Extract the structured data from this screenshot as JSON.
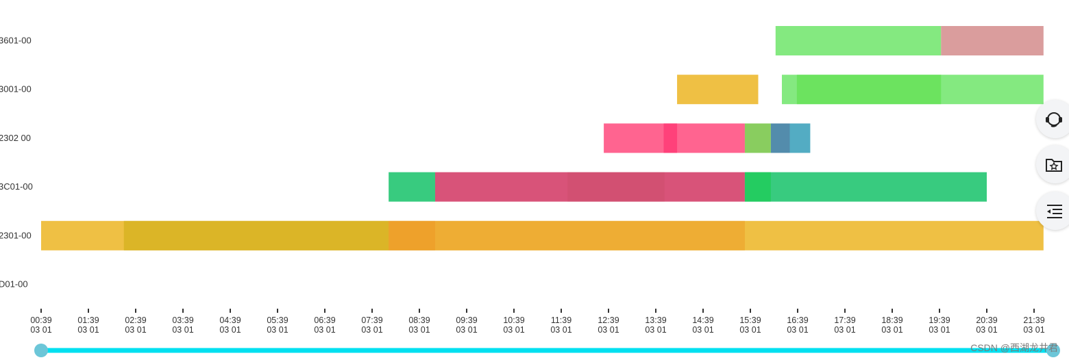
{
  "chart_data": {
    "type": "gantt",
    "title": "",
    "xlabel": "",
    "ylabel": "",
    "categories": [
      "3601-00",
      "3001-00",
      "2302 00",
      "3C01-00",
      "2301-00",
      "D01-00"
    ],
    "x_ticks": [
      {
        "time": "00:39",
        "date": "03 01"
      },
      {
        "time": "01:39",
        "date": "03 01"
      },
      {
        "time": "02:39",
        "date": "03 01"
      },
      {
        "time": "03:39",
        "date": "03 01"
      },
      {
        "time": "04:39",
        "date": "03 01"
      },
      {
        "time": "05:39",
        "date": "03 01"
      },
      {
        "time": "06:39",
        "date": "03 01"
      },
      {
        "time": "07:39",
        "date": "03 01"
      },
      {
        "time": "08:39",
        "date": "03 01"
      },
      {
        "time": "09:39",
        "date": "03 01"
      },
      {
        "time": "10:39",
        "date": "03 01"
      },
      {
        "time": "11:39",
        "date": "03 01"
      },
      {
        "time": "12:39",
        "date": "03 01"
      },
      {
        "time": "13:39",
        "date": "03 01"
      },
      {
        "time": "14:39",
        "date": "03 01"
      },
      {
        "time": "15:39",
        "date": "03 01"
      },
      {
        "time": "16:39",
        "date": "03 01"
      },
      {
        "time": "17:39",
        "date": "03 01"
      },
      {
        "time": "18:39",
        "date": "03 01"
      },
      {
        "time": "19:39",
        "date": "03 01"
      },
      {
        "time": "20:39",
        "date": "03 01"
      },
      {
        "time": "21:39",
        "date": "03 01"
      }
    ],
    "xlim": [
      "00:39",
      "21:51"
    ],
    "bars": [
      {
        "row": "3601-00",
        "start": "16:11",
        "end": "19:41",
        "color": "#6ee56a",
        "opacity": 0.85
      },
      {
        "row": "3601-00",
        "start": "19:41",
        "end": "21:51",
        "color": "#d48c8c",
        "opacity": 0.85
      },
      {
        "row": "3001-00",
        "start": "14:06",
        "end": "15:49",
        "color": "#eebd3a",
        "opacity": 0.95
      },
      {
        "row": "3001-00",
        "start": "16:19",
        "end": "21:51",
        "color": "#6ee56a",
        "opacity": 0.85
      },
      {
        "row": "3001-00",
        "start": "16:38",
        "end": "19:41",
        "color": "#5ce04a",
        "opacity": 0.6
      },
      {
        "row": "2302 00",
        "start": "12:33",
        "end": "15:32",
        "color": "#ff5c8a",
        "opacity": 0.95
      },
      {
        "row": "2302 00",
        "start": "13:49",
        "end": "14:06",
        "color": "#ff3d78",
        "opacity": 0.9
      },
      {
        "row": "2302 00",
        "start": "15:32",
        "end": "16:05",
        "color": "#7cc84e",
        "opacity": 0.9
      },
      {
        "row": "2302 00",
        "start": "16:05",
        "end": "16:29",
        "color": "#4a86a8",
        "opacity": 0.95
      },
      {
        "row": "2302 00",
        "start": "16:29",
        "end": "16:55",
        "color": "#4aa8c0",
        "opacity": 0.95
      },
      {
        "row": "3C01-00",
        "start": "08:00",
        "end": "08:59",
        "color": "#2dc878",
        "opacity": 0.95
      },
      {
        "row": "3C01-00",
        "start": "08:59",
        "end": "15:32",
        "color": "#d64a72",
        "opacity": 0.95
      },
      {
        "row": "3C01-00",
        "start": "11:47",
        "end": "13:50",
        "color": "#c84a66",
        "opacity": 0.35
      },
      {
        "row": "3C01-00",
        "start": "15:32",
        "end": "20:39",
        "color": "#2dc878",
        "opacity": 0.95
      },
      {
        "row": "3C01-00",
        "start": "15:32",
        "end": "16:05",
        "color": "#1fcc5a",
        "opacity": 0.8
      },
      {
        "row": "2301-00",
        "start": "00:39",
        "end": "21:51",
        "color": "#eebd3a",
        "opacity": 0.95
      },
      {
        "row": "2301-00",
        "start": "02:24",
        "end": "08:00",
        "color": "#d4b21e",
        "opacity": 0.75
      },
      {
        "row": "2301-00",
        "start": "08:00",
        "end": "15:32",
        "color": "#eca02a",
        "opacity": 0.6
      },
      {
        "row": "2301-00",
        "start": "08:00",
        "end": "08:59",
        "color": "#ee9522",
        "opacity": 0.5
      }
    ]
  },
  "icons": [
    "headset-icon",
    "folder-star-icon",
    "list-indent-icon"
  ],
  "watermark": "CSDN @西湖龙井君",
  "colors": {
    "slider_track": "#00e0f0",
    "slider_handle": "#6cc6d8",
    "axis": "#333333",
    "text": "#333333"
  }
}
